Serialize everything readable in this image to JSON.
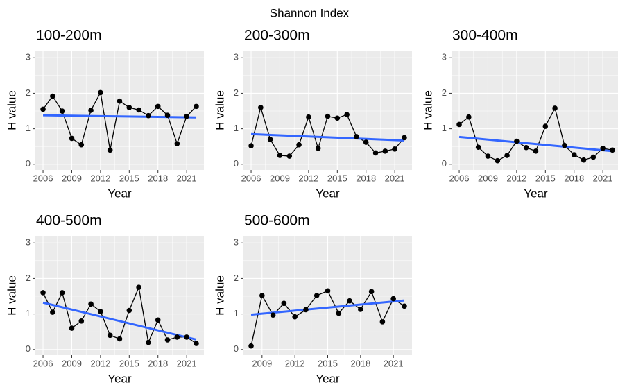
{
  "title": "Shannon Index",
  "chart_data": [
    {
      "type": "line",
      "title": "100-200m",
      "xlabel": "Year",
      "ylabel": "H value",
      "x": [
        2006,
        2007,
        2008,
        2009,
        2010,
        2011,
        2012,
        2013,
        2014,
        2015,
        2016,
        2017,
        2018,
        2019,
        2020,
        2021,
        2022
      ],
      "values": [
        1.55,
        1.92,
        1.5,
        0.73,
        0.55,
        1.52,
        2.02,
        0.4,
        1.78,
        1.6,
        1.53,
        1.37,
        1.63,
        1.38,
        0.58,
        1.35,
        1.63
      ],
      "color": "#000000",
      "trend": {
        "x": [
          2006,
          2022
        ],
        "values": [
          1.38,
          1.32
        ],
        "color": "#3366ff"
      },
      "xlim": [
        2005.2,
        2022.8
      ],
      "ylim": [
        -0.16,
        3.2
      ],
      "xticks": [
        2006,
        2009,
        2012,
        2015,
        2018,
        2021
      ],
      "yticks": [
        0,
        1,
        2,
        3
      ],
      "grid": true
    },
    {
      "type": "line",
      "title": "200-300m",
      "xlabel": "Year",
      "ylabel": "H value",
      "x": [
        2006,
        2007,
        2008,
        2009,
        2010,
        2011,
        2012,
        2013,
        2014,
        2015,
        2016,
        2017,
        2018,
        2019,
        2020,
        2021,
        2022
      ],
      "values": [
        0.52,
        1.6,
        0.7,
        0.25,
        0.23,
        0.55,
        1.33,
        0.45,
        1.35,
        1.3,
        1.4,
        0.78,
        0.62,
        0.32,
        0.37,
        0.43,
        0.75
      ],
      "color": "#000000",
      "trend": {
        "x": [
          2006,
          2022
        ],
        "values": [
          0.85,
          0.67
        ],
        "color": "#3366ff"
      },
      "xlim": [
        2005.2,
        2022.8
      ],
      "ylim": [
        -0.16,
        3.2
      ],
      "xticks": [
        2006,
        2009,
        2012,
        2015,
        2018,
        2021
      ],
      "yticks": [
        0,
        1,
        2,
        3
      ],
      "grid": true
    },
    {
      "type": "line",
      "title": "300-400m",
      "xlabel": "Year",
      "ylabel": "H value",
      "x": [
        2006,
        2007,
        2008,
        2009,
        2010,
        2011,
        2012,
        2013,
        2014,
        2015,
        2016,
        2017,
        2018,
        2019,
        2020,
        2021,
        2022
      ],
      "values": [
        1.12,
        1.33,
        0.48,
        0.23,
        0.1,
        0.25,
        0.65,
        0.47,
        0.37,
        1.07,
        1.58,
        0.53,
        0.27,
        0.12,
        0.2,
        0.45,
        0.4
      ],
      "color": "#000000",
      "trend": {
        "x": [
          2006,
          2022
        ],
        "values": [
          0.77,
          0.37
        ],
        "color": "#3366ff"
      },
      "xlim": [
        2005.2,
        2022.8
      ],
      "ylim": [
        -0.16,
        3.2
      ],
      "xticks": [
        2006,
        2009,
        2012,
        2015,
        2018,
        2021
      ],
      "yticks": [
        0,
        1,
        2,
        3
      ],
      "grid": true
    },
    {
      "type": "line",
      "title": "400-500m",
      "xlabel": "Year",
      "ylabel": "H value",
      "x": [
        2006,
        2007,
        2008,
        2009,
        2010,
        2011,
        2012,
        2013,
        2014,
        2015,
        2016,
        2017,
        2018,
        2019,
        2020,
        2021,
        2022
      ],
      "values": [
        1.6,
        1.05,
        1.6,
        0.6,
        0.8,
        1.28,
        1.07,
        0.4,
        0.3,
        1.1,
        1.75,
        0.2,
        0.83,
        0.27,
        0.35,
        0.35,
        0.17
      ],
      "color": "#000000",
      "trend": {
        "x": [
          2006,
          2022
        ],
        "values": [
          1.32,
          0.28
        ],
        "color": "#3366ff"
      },
      "xlim": [
        2005.2,
        2022.8
      ],
      "ylim": [
        -0.16,
        3.2
      ],
      "xticks": [
        2006,
        2009,
        2012,
        2015,
        2018,
        2021
      ],
      "yticks": [
        0,
        1,
        2,
        3
      ],
      "grid": true
    },
    {
      "type": "line",
      "title": "500-600m",
      "xlabel": "Year",
      "ylabel": "H value",
      "x": [
        2008,
        2009,
        2010,
        2011,
        2012,
        2013,
        2014,
        2015,
        2016,
        2017,
        2018,
        2019,
        2020,
        2021,
        2022
      ],
      "values": [
        0.1,
        1.52,
        0.97,
        1.3,
        0.92,
        1.12,
        1.52,
        1.65,
        1.02,
        1.37,
        1.13,
        1.63,
        0.78,
        1.43,
        1.22
      ],
      "color": "#000000",
      "trend": {
        "x": [
          2008,
          2022
        ],
        "values": [
          0.98,
          1.38
        ],
        "color": "#3366ff"
      },
      "xlim": [
        2007.3,
        2022.7
      ],
      "ylim": [
        -0.16,
        3.2
      ],
      "xticks": [
        2009,
        2012,
        2015,
        2018,
        2021
      ],
      "yticks": [
        0,
        1,
        2,
        3
      ],
      "grid": true
    }
  ]
}
